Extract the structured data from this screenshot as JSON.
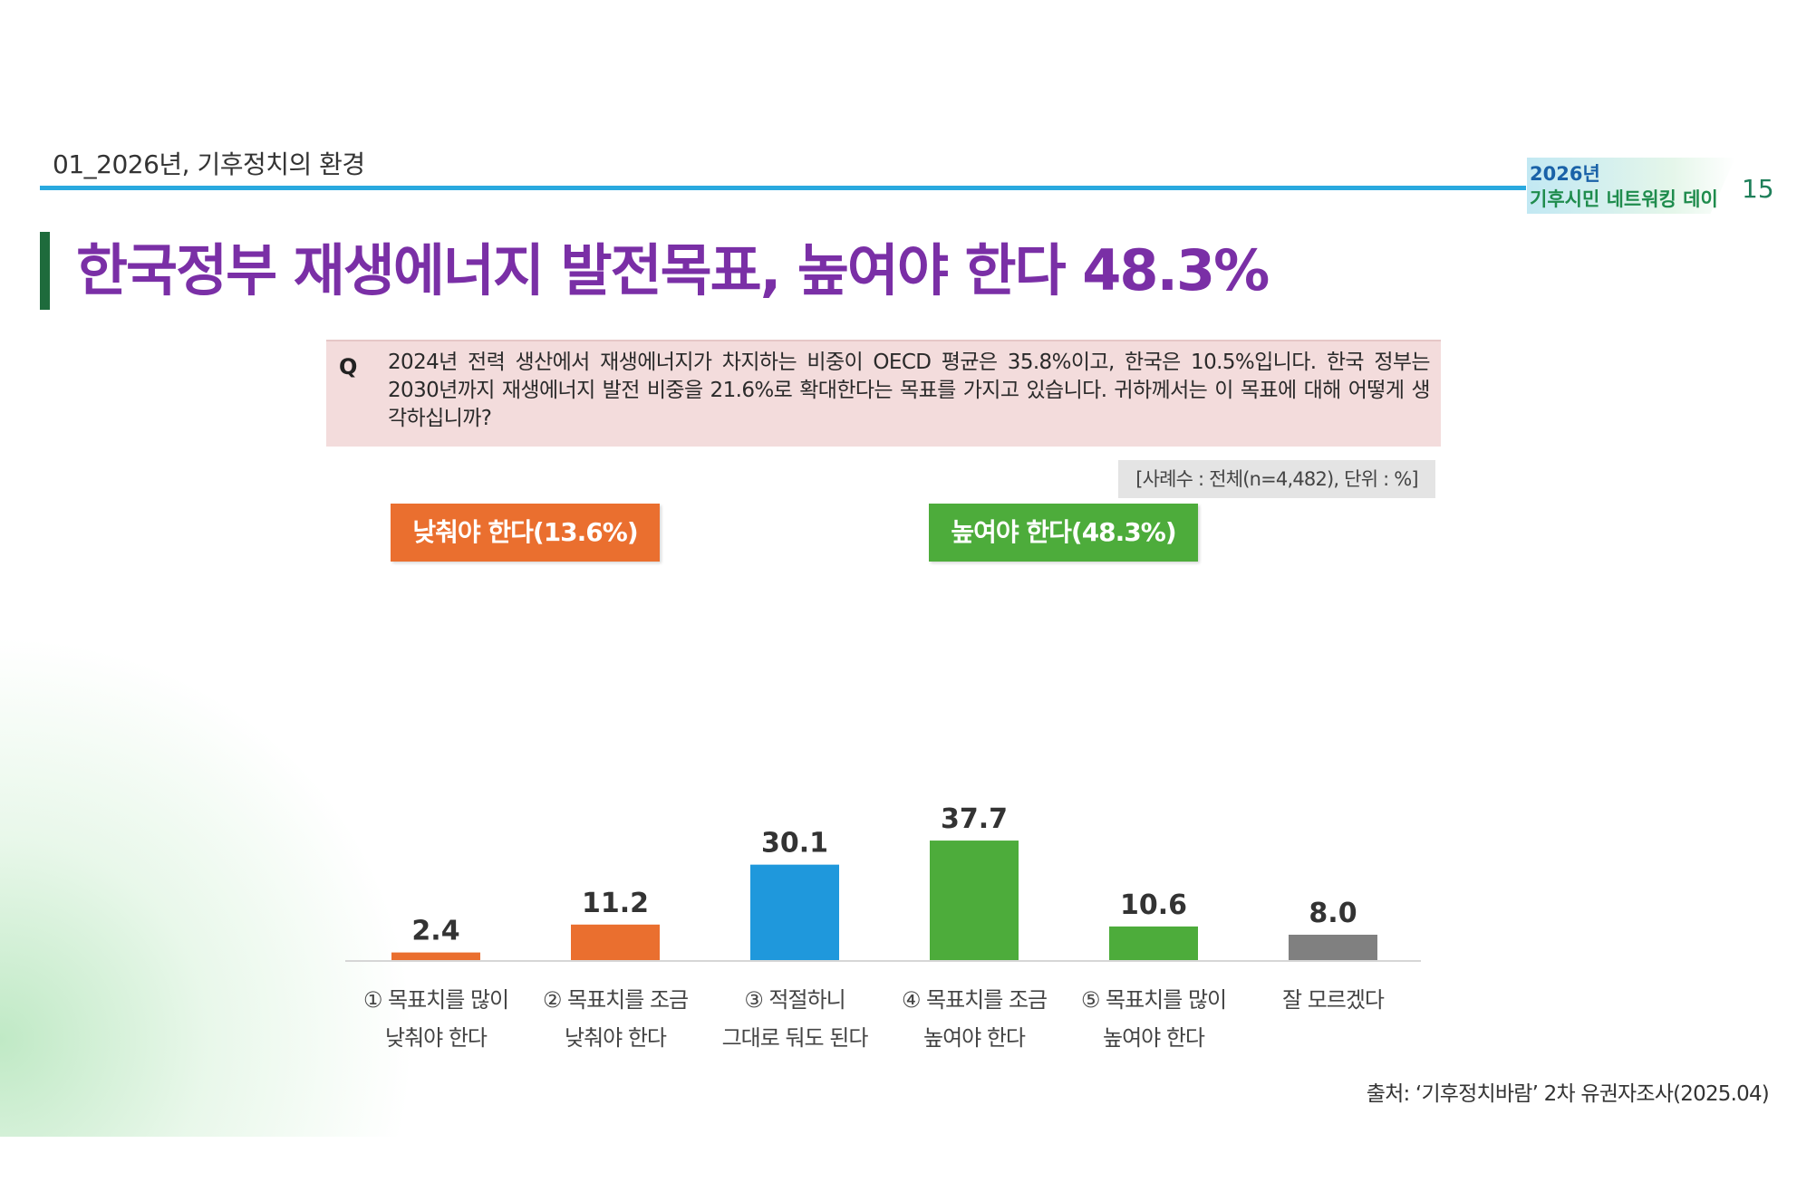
{
  "header": {
    "section": "01_2026년, 기후정치의 환경",
    "badge_year": "2026년",
    "badge_name": "기후시민 네트워킹 데이",
    "page_number": "15"
  },
  "title": "한국정부 재생에너지 발전목표, 높여야 한다 48.3%",
  "question": {
    "marker": "Q",
    "text": "2024년 전력 생산에서 재생에너지가 차지하는 비중이 OECD 평균은 35.8%이고, 한국은 10.5%입니다. 한국 정부는 2030년까지 재생에너지 발전 비중을 21.6%로 확대한다는 목표를 가지고 있습니다. 귀하께서는 이 목표에 대해 어떻게 생각하십니까?"
  },
  "sample_note": "[사례수 : 전체(n=4,482), 단위 : %]",
  "summary": {
    "lower": "낮춰야 한다(13.6%)",
    "higher": "높여야 한다(48.3%)"
  },
  "colors": {
    "orange": "#ea6f2f",
    "blue": "#1f98dc",
    "green": "#4dac3b",
    "gray": "#808080",
    "title": "#7a2fa6"
  },
  "chart_data": {
    "type": "bar",
    "categories": [
      [
        "① 목표치를 많이",
        "낮춰야 한다"
      ],
      [
        "② 목표치를 조금",
        "낮춰야 한다"
      ],
      [
        "③ 적절하니",
        "그대로 둬도 된다"
      ],
      [
        "④ 목표치를 조금",
        "높여야 한다"
      ],
      [
        "⑤ 목표치를 많이",
        "높여야 한다"
      ],
      [
        "잘 모르겠다"
      ]
    ],
    "values": [
      2.4,
      11.2,
      30.1,
      37.7,
      10.6,
      8.0
    ],
    "value_labels": [
      "2.4",
      "11.2",
      "30.1",
      "37.7",
      "10.6",
      "8.0"
    ],
    "bar_colors": [
      "#ea6f2f",
      "#ea6f2f",
      "#1f98dc",
      "#4dac3b",
      "#4dac3b",
      "#808080"
    ],
    "title": "",
    "xlabel": "",
    "ylabel": "",
    "ylim": [
      0,
      40
    ]
  },
  "source": "출처: ‘기후정치바람’ 2차 유권자조사(2025.04)"
}
